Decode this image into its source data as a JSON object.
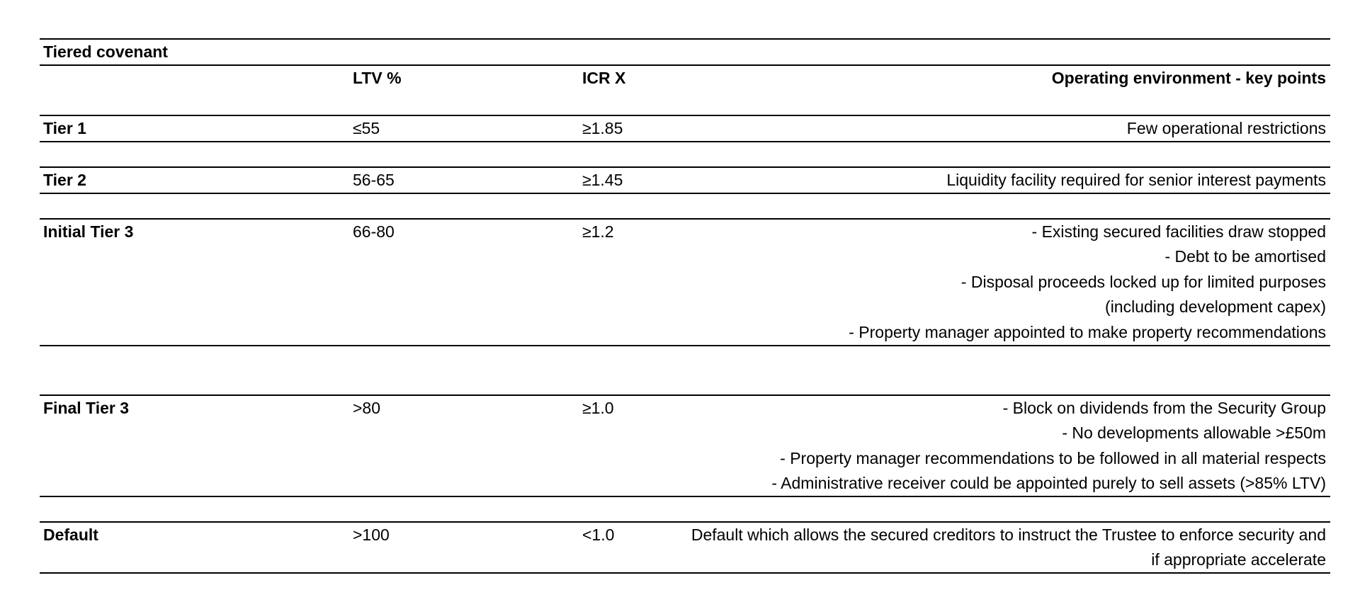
{
  "table": {
    "title": "Tiered covenant",
    "headers": {
      "ltv": "LTV %",
      "icr": "ICR X",
      "points": "Operating environment - key points"
    },
    "rows": [
      {
        "tier": "Tier 1",
        "ltv": "≤55",
        "icr": "≥1.85",
        "points": [
          "Few operational restrictions"
        ]
      },
      {
        "tier": "Tier 2",
        "ltv": "56-65",
        "icr": "≥1.45",
        "points": [
          "Liquidity facility required for senior interest payments"
        ]
      },
      {
        "tier": "Initial Tier 3",
        "ltv": "66-80",
        "icr": "≥1.2",
        "points": [
          "- Existing secured facilities draw stopped",
          "- Debt to be amortised",
          "- Disposal proceeds locked up for limited purposes",
          "(including development capex)",
          "- Property manager appointed to make property recommendations"
        ]
      },
      {
        "tier": "Final Tier 3",
        "ltv": ">80",
        "icr": "≥1.0",
        "points": [
          "- Block on dividends from the Security Group",
          "- No developments allowable >£50m",
          "- Property manager recommendations to be followed in all material respects",
          "- Administrative receiver could be appointed purely to sell assets (>85% LTV)"
        ]
      },
      {
        "tier": "Default",
        "ltv": ">100",
        "icr": "<1.0",
        "points": [
          "Default which allows the secured creditors to instruct the Trustee to enforce security and",
          "if appropriate accelerate"
        ]
      }
    ]
  }
}
